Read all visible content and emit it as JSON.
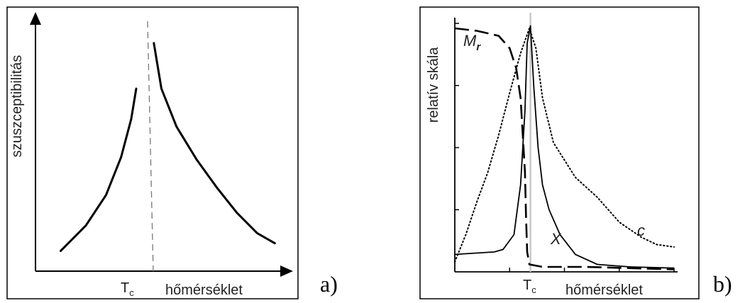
{
  "chart_data": [
    {
      "type": "line",
      "panel_label": "a)",
      "xlabel": "hőmérséklet",
      "ylabel": "szuszceptibilitás",
      "critical_temperature_label": "T",
      "critical_temperature_subscript": "c",
      "axis_style": "arrows, no ticks",
      "grid": false,
      "series": [
        {
          "style": "solid",
          "segments": [
            [
              [
                0.1,
                0.08
              ],
              [
                0.2,
                0.18
              ],
              [
                0.28,
                0.3
              ],
              [
                0.34,
                0.45
              ],
              [
                0.38,
                0.6
              ],
              [
                0.4,
                0.72
              ]
            ],
            [
              [
                0.47,
                0.9
              ],
              [
                0.5,
                0.72
              ],
              [
                0.56,
                0.57
              ],
              [
                0.64,
                0.44
              ],
              [
                0.72,
                0.33
              ],
              [
                0.8,
                0.23
              ],
              [
                0.88,
                0.15
              ],
              [
                0.95,
                0.11
              ]
            ]
          ]
        }
      ],
      "reference_line": {
        "x": 0.445,
        "style": "dashed"
      }
    },
    {
      "type": "line",
      "panel_label": "b)",
      "xlabel": "hőmérséklet",
      "ylabel": "relatív skála",
      "critical_temperature_label": "T",
      "critical_temperature_subscript": "c",
      "axis_style": "ticks, no numeric labels",
      "grid": false,
      "series": [
        {
          "name": "M",
          "name_subscript": "r",
          "style": "long-dashed",
          "points": [
            [
              0.0,
              0.98
            ],
            [
              0.1,
              0.97
            ],
            [
              0.2,
              0.95
            ],
            [
              0.25,
              0.9
            ],
            [
              0.28,
              0.82
            ],
            [
              0.3,
              0.7
            ],
            [
              0.31,
              0.55
            ],
            [
              0.32,
              0.4
            ],
            [
              0.325,
              0.22
            ],
            [
              0.33,
              0.08
            ],
            [
              0.34,
              0.03
            ],
            [
              0.4,
              0.02
            ],
            [
              0.6,
              0.02
            ],
            [
              1.0,
              0.01
            ]
          ]
        },
        {
          "name": "X",
          "style": "solid",
          "points": [
            [
              0.0,
              0.07
            ],
            [
              0.18,
              0.08
            ],
            [
              0.22,
              0.09
            ],
            [
              0.27,
              0.15
            ],
            [
              0.3,
              0.35
            ],
            [
              0.32,
              0.65
            ],
            [
              0.33,
              0.92
            ],
            [
              0.345,
              0.99
            ],
            [
              0.36,
              0.75
            ],
            [
              0.38,
              0.5
            ],
            [
              0.4,
              0.35
            ],
            [
              0.43,
              0.25
            ],
            [
              0.48,
              0.15
            ],
            [
              0.55,
              0.07
            ],
            [
              0.65,
              0.03
            ],
            [
              0.8,
              0.02
            ],
            [
              1.0,
              0.015
            ]
          ]
        },
        {
          "name": "c",
          "style": "dotted",
          "points": [
            [
              0.0,
              0.04
            ],
            [
              0.05,
              0.15
            ],
            [
              0.1,
              0.28
            ],
            [
              0.15,
              0.4
            ],
            [
              0.2,
              0.55
            ],
            [
              0.25,
              0.72
            ],
            [
              0.3,
              0.88
            ],
            [
              0.34,
              0.98
            ],
            [
              0.37,
              0.9
            ],
            [
              0.4,
              0.7
            ],
            [
              0.45,
              0.52
            ],
            [
              0.55,
              0.38
            ],
            [
              0.65,
              0.3
            ],
            [
              0.75,
              0.2
            ],
            [
              0.85,
              0.14
            ],
            [
              0.92,
              0.11
            ],
            [
              1.0,
              0.1
            ]
          ]
        }
      ],
      "reference_line": {
        "x": 0.345,
        "style": "solid light gray"
      }
    }
  ]
}
